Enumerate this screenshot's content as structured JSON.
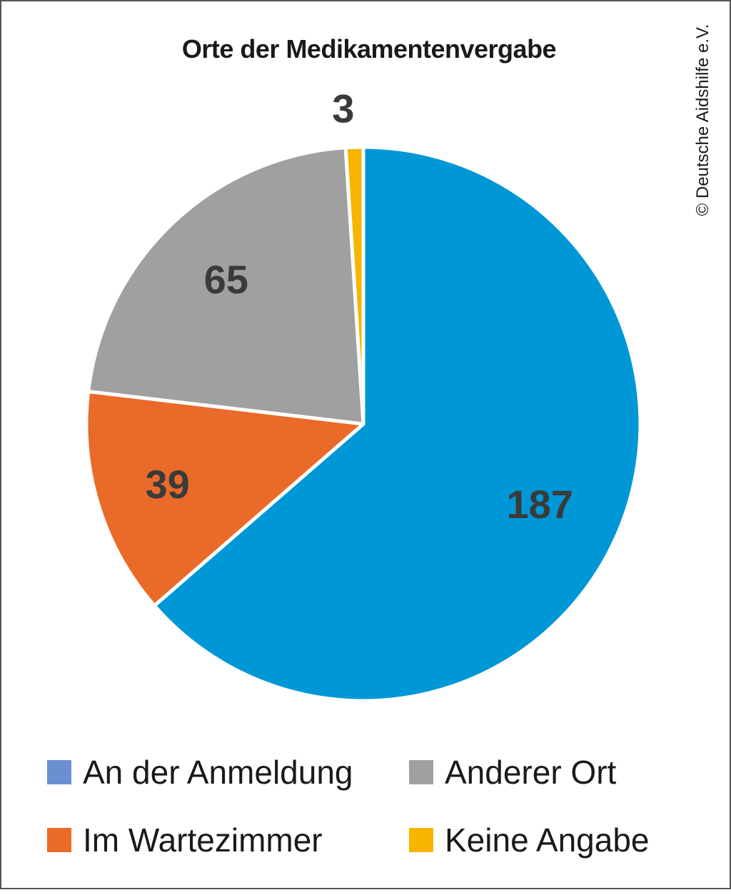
{
  "chart_data": {
    "type": "pie",
    "title": "Orte der Medikamentenvergabe",
    "credit": "© Deutsche Aidshilfe e.V.",
    "start_angle": "12 o'clock, clockwise",
    "slices": [
      {
        "label": "An der Anmeldung",
        "value": 187,
        "color": "#0097d6"
      },
      {
        "label": "Im Wartezimmer",
        "value": 39,
        "color": "#ea6a2a"
      },
      {
        "label": "Anderer Ort",
        "value": 65,
        "color": "#a0a0a0"
      },
      {
        "label": "Keine Angabe",
        "value": 3,
        "color": "#f7b500"
      }
    ],
    "legend": {
      "position": "bottom",
      "items": [
        {
          "label": "An der Anmeldung",
          "color": "#6b8fd0"
        },
        {
          "label": "Anderer Ort",
          "color": "#a0a0a0"
        },
        {
          "label": "Im Wartezimmer",
          "color": "#ea6a2a"
        },
        {
          "label": "Keine Angabe",
          "color": "#f7b500"
        }
      ]
    },
    "data_label_color": "#3a3a3a"
  }
}
